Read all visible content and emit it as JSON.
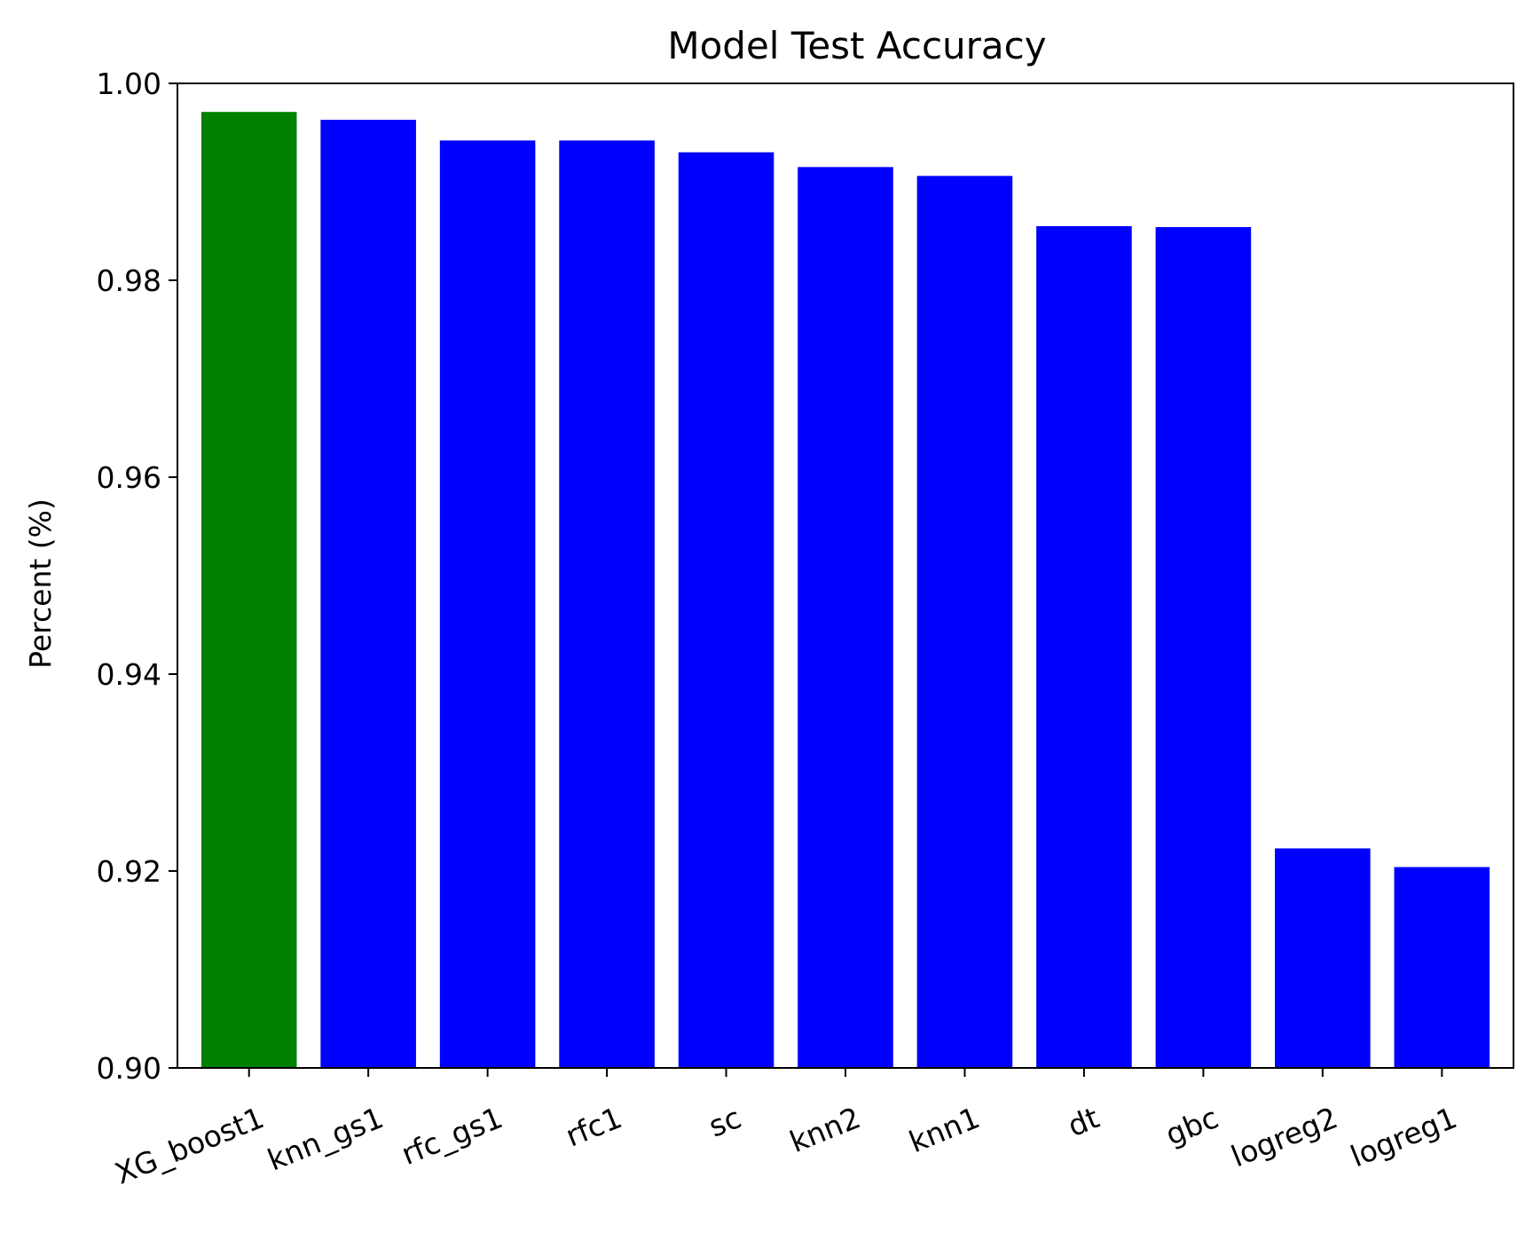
{
  "chart_data": {
    "type": "bar",
    "title": "Model Test Accuracy",
    "xlabel": "",
    "ylabel": "Percent (%)",
    "categories": [
      "XG_boost1",
      "knn_gs1",
      "rfc_gs1",
      "rfc1",
      "sc",
      "knn2",
      "knn1",
      "dt",
      "gbc",
      "logreg2",
      "logreg1"
    ],
    "values": [
      0.9971,
      0.9963,
      0.9942,
      0.9942,
      0.993,
      0.9915,
      0.9906,
      0.9855,
      0.9854,
      0.9223,
      0.9204
    ],
    "colors": [
      "#008000",
      "#0000ff",
      "#0000ff",
      "#0000ff",
      "#0000ff",
      "#0000ff",
      "#0000ff",
      "#0000ff",
      "#0000ff",
      "#0000ff",
      "#0000ff"
    ],
    "ylim": [
      0.9,
      1.0
    ],
    "yticks": [
      "0.90",
      "0.92",
      "0.94",
      "0.96",
      "0.98",
      "1.00"
    ],
    "grid": false,
    "legend": "none"
  }
}
